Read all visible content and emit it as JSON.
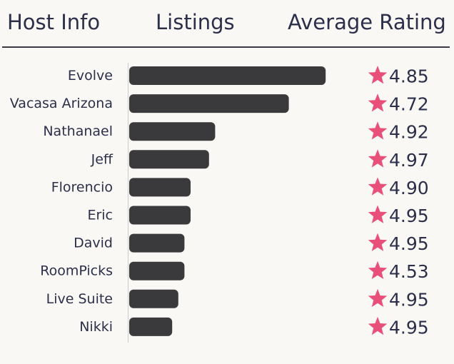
{
  "header": {
    "host_info": "Host Info",
    "listings": "Listings",
    "average_rating": "Average Rating"
  },
  "colors": {
    "bar": "#3a3a3d",
    "star": "#e8507a",
    "text": "#2b2f4a",
    "background": "#faf8f4",
    "axis": "#cccccc"
  },
  "chart_data": {
    "type": "bar",
    "orientation": "horizontal",
    "categories": [
      "Evolve",
      "Vacasa Arizona",
      "Nathanael",
      "Jeff",
      "Florencio",
      "Eric",
      "David",
      "RoomPicks",
      "Live Suite",
      "Nikki"
    ],
    "values": [
      32,
      26,
      14,
      13,
      10,
      10,
      9,
      9,
      8,
      7
    ],
    "ratings": [
      "4.85",
      "4.72",
      "4.92",
      "4.97",
      "4.90",
      "4.95",
      "4.95",
      "4.53",
      "4.95",
      "4.95"
    ],
    "star_icon": "star-icon",
    "title": "",
    "xlabel": "Listings",
    "ylabel": "Host Info",
    "grid": false
  }
}
